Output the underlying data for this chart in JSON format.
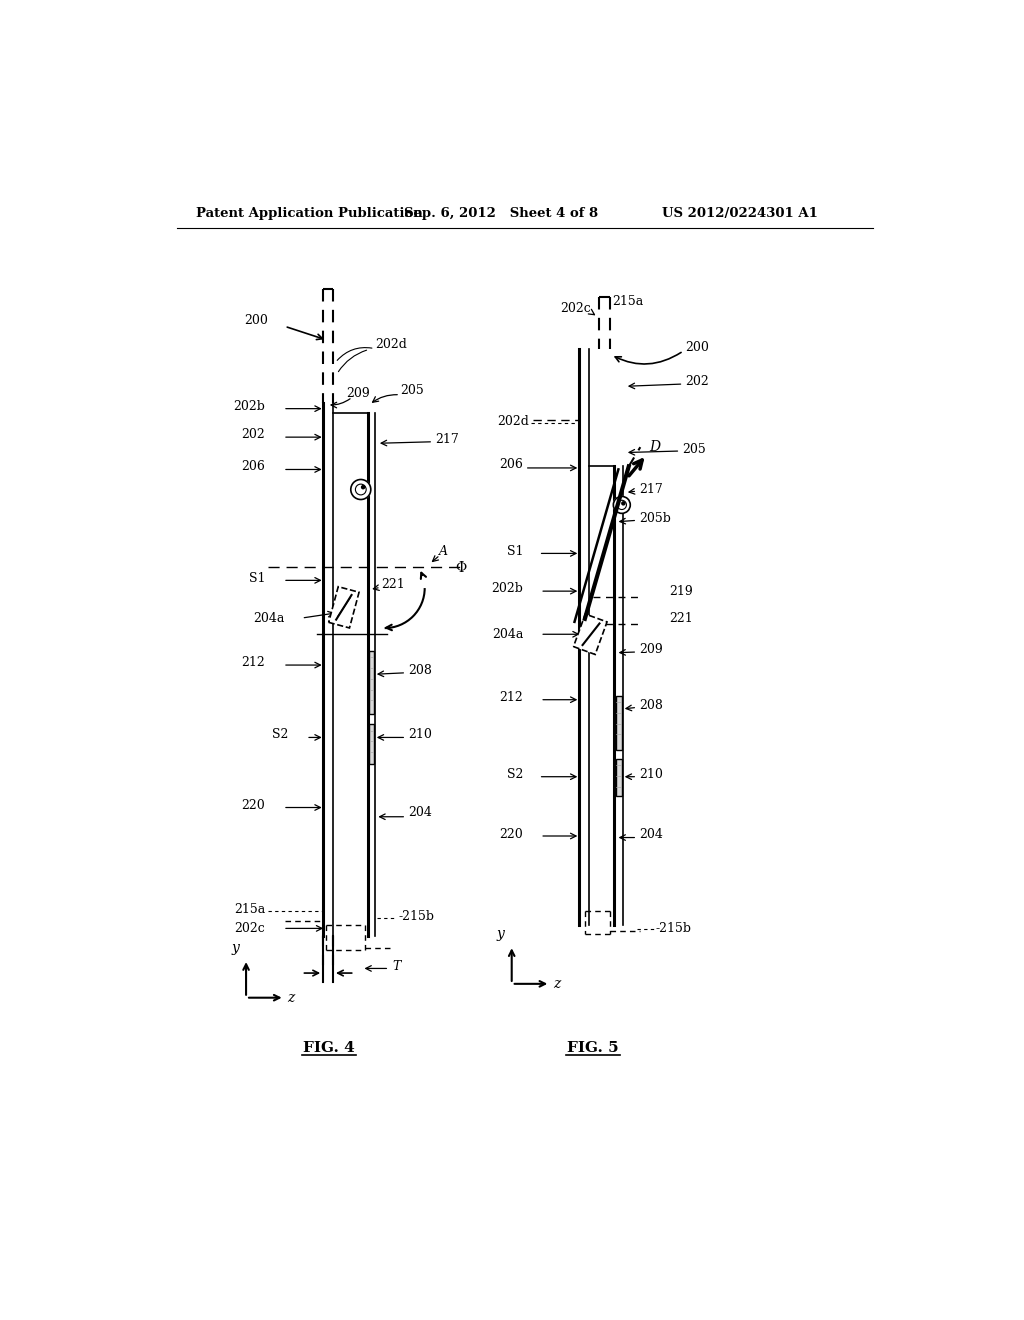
{
  "header_left": "Patent Application Publication",
  "header_mid": "Sep. 6, 2012   Sheet 4 of 8",
  "header_right": "US 2012/0224301 A1",
  "fig4_label": "FIG. 4",
  "fig5_label": "FIG. 5",
  "bg_color": "#ffffff",
  "line_color": "#000000"
}
